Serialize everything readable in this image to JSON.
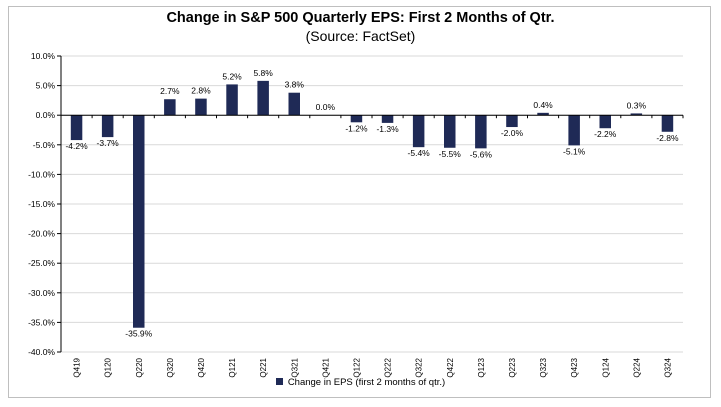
{
  "chart_data": {
    "type": "bar",
    "title": "Change in S&P 500 Quarterly EPS: First 2 Months of Qtr.",
    "subtitle": "(Source: FactSet)",
    "categories": [
      "Q419",
      "Q120",
      "Q220",
      "Q320",
      "Q420",
      "Q121",
      "Q221",
      "Q321",
      "Q421",
      "Q122",
      "Q222",
      "Q322",
      "Q422",
      "Q123",
      "Q223",
      "Q323",
      "Q423",
      "Q124",
      "Q224",
      "Q324"
    ],
    "series": [
      {
        "name": "Change in EPS (first 2 months of qtr.)",
        "values": [
          -4.2,
          -3.7,
          -35.9,
          2.7,
          2.8,
          5.2,
          5.8,
          3.8,
          0.0,
          -1.2,
          -1.3,
          -5.4,
          -5.5,
          -5.6,
          -2.0,
          0.4,
          -5.1,
          -2.2,
          0.3,
          -2.8
        ],
        "data_labels": [
          "-4.2%",
          "-3.7%",
          "-35.9%",
          "2.7%",
          "2.8%",
          "5.2%",
          "5.8%",
          "3.8%",
          "0.0%",
          "-1.2%",
          "-1.3%",
          "-5.4%",
          "-5.5%",
          "-5.6%",
          "-2.0%",
          "0.4%",
          "-5.1%",
          "-2.2%",
          "0.3%",
          "-2.8%"
        ]
      }
    ],
    "ylim": [
      -40,
      10
    ],
    "y_ticks": [
      10,
      5,
      0,
      -5,
      -10,
      -15,
      -20,
      -25,
      -30,
      -35,
      -40
    ],
    "y_tick_labels": [
      "10.0%",
      "5.0%",
      "0.0%",
      "-5.0%",
      "-10.0%",
      "-15.0%",
      "-20.0%",
      "-25.0%",
      "-30.0%",
      "-35.0%",
      "-40.0%"
    ],
    "grid": true,
    "legend": "bottom",
    "colors": {
      "bar": "#1f2a56",
      "grid": "#d9d9d9",
      "axis": "#000000"
    }
  }
}
